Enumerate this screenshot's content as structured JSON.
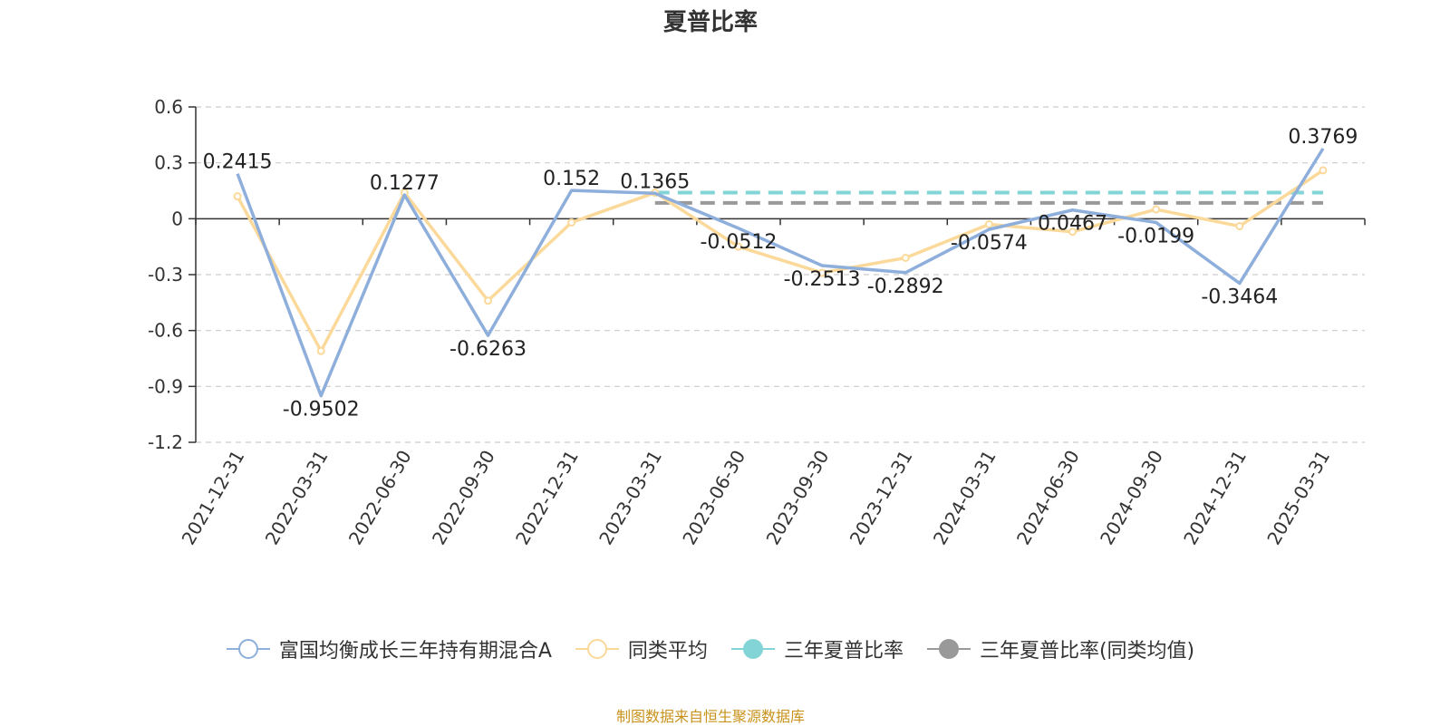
{
  "title": "夏普比率",
  "source": "制图数据来自恒生聚源数据库",
  "legend": [
    {
      "name": "富国均衡成长三年持有期混合A",
      "color": "#8eaedb",
      "style": "hollow"
    },
    {
      "name": "同类平均",
      "color": "#fbd99a",
      "style": "hollow"
    },
    {
      "name": "三年夏普比率",
      "color": "#82d4d6",
      "style": "solid"
    },
    {
      "name": "三年夏普比率(同类均值)",
      "color": "#999999",
      "style": "solid"
    }
  ],
  "chart_data": {
    "type": "line",
    "title": "夏普比率",
    "categories": [
      "2021-12-31",
      "2022-03-31",
      "2022-06-30",
      "2022-09-30",
      "2022-12-31",
      "2023-03-31",
      "2023-06-30",
      "2023-09-30",
      "2023-12-31",
      "2024-03-31",
      "2024-06-30",
      "2024-09-30",
      "2024-12-31",
      "2025-03-31"
    ],
    "ylim": [
      -1.2,
      0.6
    ],
    "yticks": [
      "0.6",
      "0.3",
      "0",
      "-0.3",
      "-0.6",
      "-0.9",
      "-1.2"
    ],
    "grid": true,
    "legend_position": "bottom",
    "series": [
      {
        "name": "富国均衡成长三年持有期混合A",
        "color": "#8eaedb",
        "values": [
          0.2415,
          -0.9502,
          0.1277,
          -0.6263,
          0.152,
          0.1365,
          -0.0512,
          -0.2513,
          -0.2892,
          -0.0574,
          0.0467,
          -0.0199,
          -0.3464,
          0.3769
        ],
        "labels": [
          "0.2415",
          "-0.9502",
          "0.1277",
          "-0.6263",
          "0.152",
          "0.1365",
          "-0.0512",
          "-0.2513",
          "-0.2892",
          "-0.0574",
          "0.0467",
          "-0.0199",
          "-0.3464",
          "0.3769"
        ]
      },
      {
        "name": "同类平均",
        "color": "#fbd99a",
        "values": [
          0.12,
          -0.71,
          0.14,
          -0.44,
          -0.02,
          0.14,
          -0.15,
          -0.29,
          -0.21,
          -0.03,
          -0.07,
          0.05,
          -0.04,
          0.26
        ]
      }
    ],
    "reference_lines": [
      {
        "name": "三年夏普比率",
        "color": "#82d4d6",
        "value": 0.14,
        "from": "2023-03-31",
        "to": "2025-03-31"
      },
      {
        "name": "三年夏普比率(同类均值)",
        "color": "#999999",
        "value": 0.085,
        "from": "2023-03-31",
        "to": "2025-03-31"
      }
    ]
  }
}
